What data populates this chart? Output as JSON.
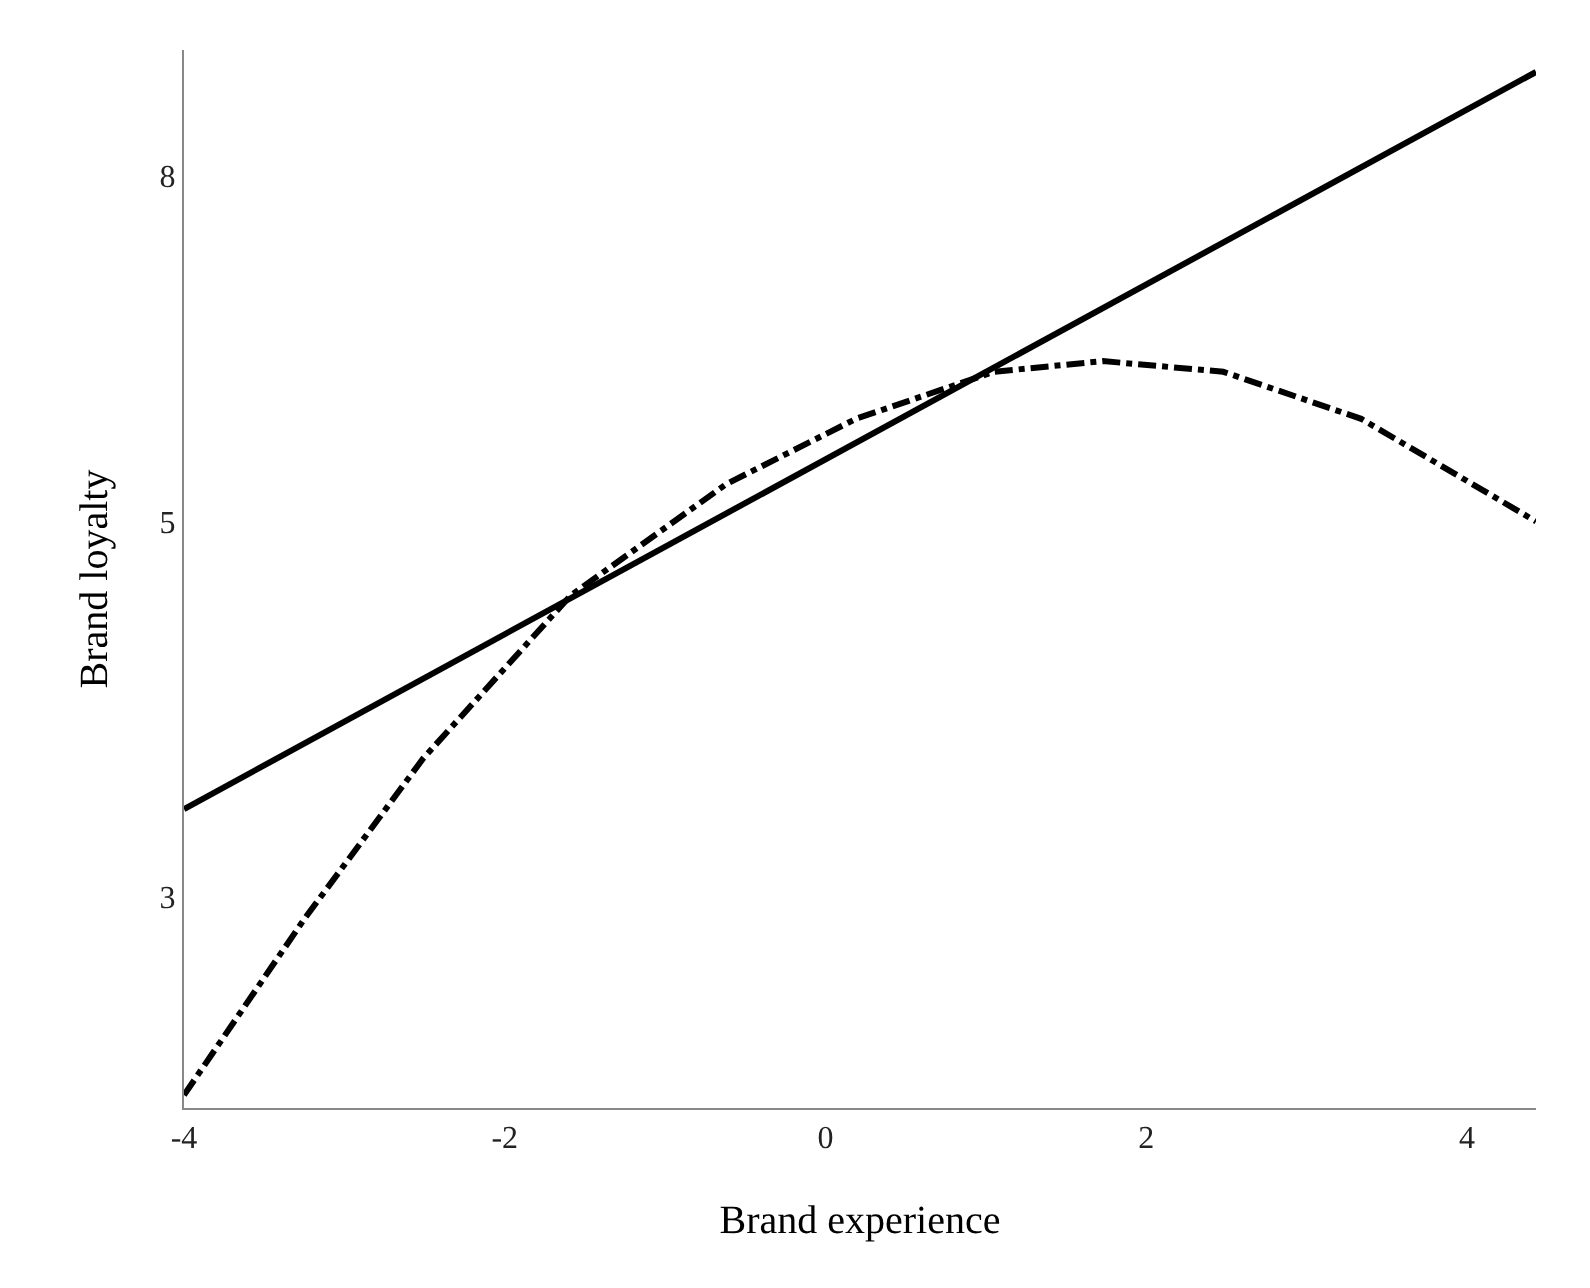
{
  "chart_data": {
    "type": "line",
    "xlabel": "Brand experience",
    "ylabel": "Brand loyalty",
    "xlim": [
      -4,
      4.43
    ],
    "xticks": [
      -4,
      -2,
      0,
      2,
      4
    ],
    "ylim": [
      2.25,
      9.5
    ],
    "yticks": [
      3,
      5,
      8
    ],
    "log": "y",
    "marker": "none",
    "series": [
      {
        "color": "#000000",
        "line_style": "solid",
        "x": [
          -4,
          4.43
        ],
        "values": [
          3.38,
          9.22
        ]
      },
      {
        "color": "#000000",
        "line_style": "dashdot",
        "x": [
          -4,
          -3.25,
          -2.51,
          -1.59,
          -0.62,
          0.19,
          1.05,
          1.73,
          2.48,
          3.34,
          4.43
        ],
        "values": [
          2.29,
          2.91,
          3.62,
          4.52,
          5.26,
          5.75,
          6.13,
          6.22,
          6.13,
          5.75,
          5.0
        ]
      }
    ]
  }
}
